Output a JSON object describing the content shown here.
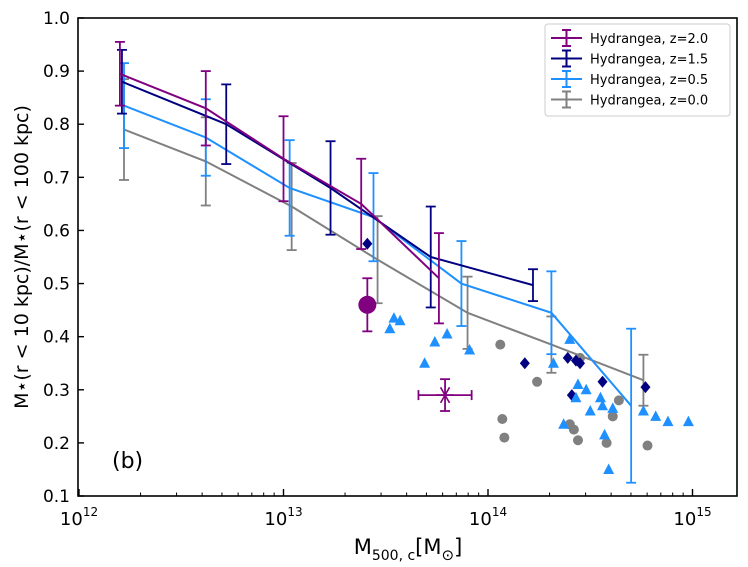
{
  "chart_data": {
    "type": "line",
    "panel_label": "(b)",
    "xlabel": {
      "main": "M",
      "sub": "500, c",
      "unit": "[M",
      "unit_sym": "⊙",
      "unit_end": "]"
    },
    "ylabel": "M⋆(r < 10 kpc)/M⋆(r < 100 kpc)",
    "xscale": "log",
    "xlim_log10": [
      12,
      15.2
    ],
    "ylim": [
      0.1,
      1.0
    ],
    "x_ticks": [
      {
        "base": "10",
        "exp": "12",
        "log10": 12
      },
      {
        "base": "10",
        "exp": "13",
        "log10": 13
      },
      {
        "base": "10",
        "exp": "14",
        "log10": 14
      },
      {
        "base": "10",
        "exp": "15",
        "log10": 15
      }
    ],
    "y_ticks": [
      "0.1",
      "0.2",
      "0.3",
      "0.4",
      "0.5",
      "0.6",
      "0.7",
      "0.8",
      "0.9",
      "1.0"
    ],
    "legend_position": "top-right",
    "series": [
      {
        "name": "Hydrangea, z=2.0",
        "color": "#800080",
        "log_x": [
          12.2,
          12.62,
          13.0,
          13.38,
          13.76
        ],
        "y": [
          0.895,
          0.83,
          0.735,
          0.65,
          0.51
        ],
        "yerr": [
          0.06,
          0.07,
          0.08,
          0.085,
          0.085
        ]
      },
      {
        "name": "Hydrangea, z=1.5",
        "color": "#000080",
        "log_x": [
          12.21,
          12.72,
          13.23,
          13.72,
          14.22
        ],
        "y": [
          0.88,
          0.8,
          0.68,
          0.55,
          0.497
        ],
        "yerr": [
          0.06,
          0.075,
          0.088,
          0.095,
          0.03
        ]
      },
      {
        "name": "Hydrangea, z=0.5",
        "color": "#1E90FF",
        "log_x": [
          12.22,
          12.62,
          13.03,
          13.44,
          13.87,
          14.31,
          14.7
        ],
        "y": [
          0.835,
          0.775,
          0.68,
          0.625,
          0.5,
          0.445,
          0.27
        ],
        "yerr": [
          0.08,
          0.072,
          0.09,
          0.083,
          0.08,
          0.078,
          0.145
        ]
      },
      {
        "name": "Hydrangea, z=0.0",
        "color": "#808080",
        "log_x": [
          12.22,
          12.62,
          13.04,
          13.46,
          13.9,
          14.31,
          14.76
        ],
        "y": [
          0.79,
          0.73,
          0.645,
          0.545,
          0.445,
          0.385,
          0.318
        ],
        "yerr": [
          0.095,
          0.083,
          0.082,
          0.082,
          0.068,
          0.053,
          0.048
        ]
      }
    ],
    "scatter": [
      {
        "name": "grey circles",
        "color": "#808080",
        "marker": "circle",
        "log_x": [
          14.06,
          14.07,
          14.08,
          14.24,
          14.4,
          14.42,
          14.44,
          14.45,
          14.58,
          14.61,
          14.64,
          14.78
        ],
        "y": [
          0.385,
          0.245,
          0.21,
          0.315,
          0.235,
          0.225,
          0.205,
          0.36,
          0.2,
          0.25,
          0.28,
          0.195
        ]
      },
      {
        "name": "navy diamonds",
        "color": "#000080",
        "marker": "diamond",
        "log_x": [
          13.41,
          14.18,
          14.39,
          14.41,
          14.43,
          14.45,
          14.56,
          14.77
        ],
        "y": [
          0.575,
          0.35,
          0.36,
          0.29,
          0.355,
          0.35,
          0.315,
          0.305
        ]
      },
      {
        "name": "blue triangles",
        "color": "#1E90FF",
        "marker": "triangle",
        "log_x": [
          13.52,
          13.54,
          13.57,
          13.69,
          13.74,
          13.8,
          13.91,
          14.32,
          14.37,
          14.4,
          14.43,
          14.44,
          14.48,
          14.5,
          14.55,
          14.56,
          14.57,
          14.59,
          14.61,
          14.76,
          14.82,
          14.88,
          14.98
        ],
        "y": [
          0.415,
          0.435,
          0.43,
          0.35,
          0.39,
          0.405,
          0.375,
          0.35,
          0.235,
          0.395,
          0.285,
          0.31,
          0.3,
          0.26,
          0.285,
          0.27,
          0.215,
          0.15,
          0.265,
          0.26,
          0.25,
          0.24,
          0.24
        ]
      }
    ],
    "observations": [
      {
        "name": "purple big circle",
        "color": "#800080",
        "marker": "big-circle",
        "log_x": 13.41,
        "y": 0.46,
        "yerr": 0.05
      },
      {
        "name": "purple star",
        "color": "#800080",
        "marker": "star",
        "log_x": 13.79,
        "y": 0.29,
        "yerr": 0.03,
        "log_xerr": 0.13
      }
    ]
  }
}
